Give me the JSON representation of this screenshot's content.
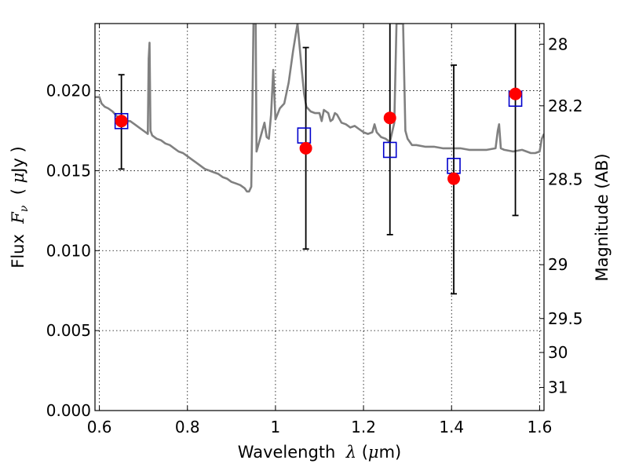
{
  "chart_data": {
    "type": "scatter",
    "xlabel_prefix": "Wavelength",
    "xlabel_var": "λ",
    "xlabel_unit_open": " (",
    "xlabel_unit_mu": "μ",
    "xlabel_unit_rest": "m)",
    "ylabel_prefix": "Flux",
    "ylabel_var": "F",
    "ylabel_sub": "ν",
    "ylabel_unit_open": "(",
    "ylabel_unit_mu": "μ",
    "ylabel_unit_rest": "Jy )",
    "y2label": "Magnitude (AB)",
    "xlim": [
      0.59,
      1.61
    ],
    "ylim": [
      0.0,
      0.0242
    ],
    "x_ticks": [
      0.6,
      0.8,
      1.0,
      1.2,
      1.4,
      1.6
    ],
    "x_tick_labels": [
      "0.6",
      "0.8",
      "1",
      "1.2",
      "1.4",
      "1.6"
    ],
    "y_ticks": [
      0.0,
      0.005,
      0.01,
      0.015,
      0.02
    ],
    "y_tick_labels": [
      "0.000",
      "0.005",
      "0.010",
      "0.015",
      "0.020"
    ],
    "y2_ticks": [
      28,
      28.2,
      28.5,
      29,
      29.5,
      30,
      31
    ],
    "y2_tick_labels": [
      "28",
      "28.2",
      "28.5",
      "29",
      "29.5",
      "30",
      "31"
    ],
    "grid": true,
    "colors": {
      "template": "#808080",
      "observed": "#ff0000",
      "model": "#0000cc",
      "errorbar": "#000000"
    },
    "series": [
      {
        "kind": "line",
        "values_xy": [
          [
            0.59,
            0.0196
          ],
          [
            0.6,
            0.0196
          ],
          [
            0.605,
            0.0192
          ],
          [
            0.612,
            0.019
          ],
          [
            0.62,
            0.0189
          ],
          [
            0.63,
            0.0187
          ],
          [
            0.64,
            0.0184
          ],
          [
            0.65,
            0.0182
          ],
          [
            0.66,
            0.0181
          ],
          [
            0.67,
            0.0181
          ],
          [
            0.68,
            0.0179
          ],
          [
            0.69,
            0.0177
          ],
          [
            0.7,
            0.0175
          ],
          [
            0.705,
            0.0174
          ],
          [
            0.71,
            0.0173
          ],
          [
            0.712,
            0.022
          ],
          [
            0.714,
            0.023
          ],
          [
            0.716,
            0.0175
          ],
          [
            0.72,
            0.0172
          ],
          [
            0.73,
            0.017
          ],
          [
            0.74,
            0.0169
          ],
          [
            0.75,
            0.0167
          ],
          [
            0.76,
            0.0166
          ],
          [
            0.77,
            0.0164
          ],
          [
            0.78,
            0.0162
          ],
          [
            0.79,
            0.0161
          ],
          [
            0.8,
            0.0159
          ],
          [
            0.81,
            0.0157
          ],
          [
            0.82,
            0.0155
          ],
          [
            0.83,
            0.0153
          ],
          [
            0.84,
            0.0151
          ],
          [
            0.85,
            0.015
          ],
          [
            0.86,
            0.0149
          ],
          [
            0.87,
            0.0148
          ],
          [
            0.88,
            0.0146
          ],
          [
            0.89,
            0.0145
          ],
          [
            0.9,
            0.0143
          ],
          [
            0.91,
            0.0142
          ],
          [
            0.92,
            0.0141
          ],
          [
            0.93,
            0.0139
          ],
          [
            0.935,
            0.0137
          ],
          [
            0.94,
            0.0137
          ],
          [
            0.945,
            0.014
          ],
          [
            0.948,
            0.02
          ],
          [
            0.95,
            0.0242
          ],
          [
            0.955,
            0.0242
          ],
          [
            0.957,
            0.0162
          ],
          [
            0.96,
            0.0165
          ],
          [
            0.97,
            0.0175
          ],
          [
            0.975,
            0.018
          ],
          [
            0.98,
            0.0171
          ],
          [
            0.985,
            0.017
          ],
          [
            0.99,
            0.0185
          ],
          [
            0.995,
            0.0213
          ],
          [
            1.0,
            0.0182
          ],
          [
            1.01,
            0.0189
          ],
          [
            1.02,
            0.0192
          ],
          [
            1.03,
            0.0205
          ],
          [
            1.04,
            0.0225
          ],
          [
            1.05,
            0.0242
          ],
          [
            1.06,
            0.0212
          ],
          [
            1.065,
            0.0198
          ],
          [
            1.07,
            0.019
          ],
          [
            1.08,
            0.0187
          ],
          [
            1.09,
            0.0186
          ],
          [
            1.1,
            0.0186
          ],
          [
            1.105,
            0.0181
          ],
          [
            1.11,
            0.0188
          ],
          [
            1.12,
            0.0186
          ],
          [
            1.125,
            0.0181
          ],
          [
            1.13,
            0.0182
          ],
          [
            1.135,
            0.0186
          ],
          [
            1.14,
            0.0185
          ],
          [
            1.15,
            0.018
          ],
          [
            1.16,
            0.0179
          ],
          [
            1.17,
            0.0177
          ],
          [
            1.18,
            0.0178
          ],
          [
            1.19,
            0.0176
          ],
          [
            1.2,
            0.0174
          ],
          [
            1.21,
            0.0173
          ],
          [
            1.22,
            0.0174
          ],
          [
            1.225,
            0.0179
          ],
          [
            1.23,
            0.0174
          ],
          [
            1.24,
            0.0171
          ],
          [
            1.25,
            0.017
          ],
          [
            1.26,
            0.0168
          ],
          [
            1.27,
            0.018
          ],
          [
            1.275,
            0.0242
          ],
          [
            1.29,
            0.0242
          ],
          [
            1.295,
            0.0175
          ],
          [
            1.3,
            0.017
          ],
          [
            1.31,
            0.0166
          ],
          [
            1.32,
            0.0166
          ],
          [
            1.34,
            0.0165
          ],
          [
            1.36,
            0.0165
          ],
          [
            1.38,
            0.0164
          ],
          [
            1.4,
            0.0164
          ],
          [
            1.42,
            0.0164
          ],
          [
            1.44,
            0.0163
          ],
          [
            1.46,
            0.0163
          ],
          [
            1.48,
            0.0163
          ],
          [
            1.5,
            0.0164
          ],
          [
            1.505,
            0.0175
          ],
          [
            1.508,
            0.0179
          ],
          [
            1.512,
            0.0164
          ],
          [
            1.52,
            0.0163
          ],
          [
            1.54,
            0.0162
          ],
          [
            1.56,
            0.0163
          ],
          [
            1.58,
            0.0161
          ],
          [
            1.59,
            0.0161
          ],
          [
            1.6,
            0.0162
          ],
          [
            1.605,
            0.017
          ],
          [
            1.61,
            0.0173
          ]
        ]
      },
      {
        "kind": "errorbars",
        "values_xy": [
          [
            0.65,
            0.0181
          ],
          [
            1.069,
            0.0164
          ],
          [
            1.26,
            0.0183
          ],
          [
            1.405,
            0.0145
          ],
          [
            1.545,
            0.0198
          ]
        ],
        "yerr_low": [
          0.0151,
          0.0101,
          0.011,
          0.0073,
          0.0122
        ],
        "yerr_high": [
          0.021,
          0.0227,
          0.0245,
          0.0216,
          0.0245
        ]
      },
      {
        "kind": "squares",
        "values_xy": [
          [
            0.65,
            0.0181
          ],
          [
            1.065,
            0.0172
          ],
          [
            1.26,
            0.0163
          ],
          [
            1.405,
            0.0153
          ],
          [
            1.545,
            0.0195
          ]
        ]
      },
      {
        "kind": "circles",
        "values_xy": [
          [
            0.65,
            0.0181
          ],
          [
            1.069,
            0.0164
          ],
          [
            1.26,
            0.0183
          ],
          [
            1.405,
            0.0145
          ],
          [
            1.545,
            0.0198
          ]
        ]
      }
    ]
  }
}
